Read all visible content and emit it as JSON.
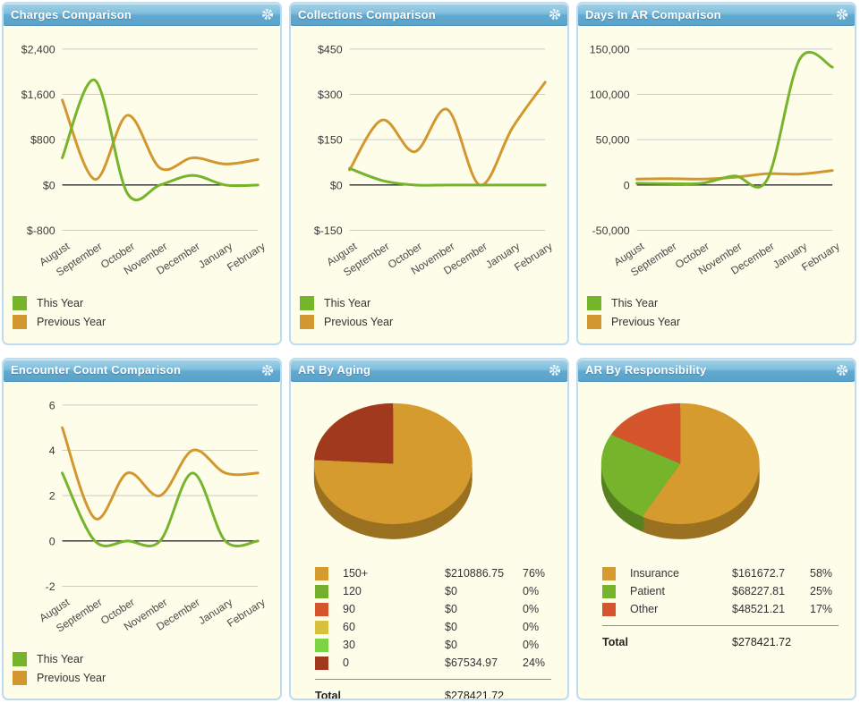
{
  "theme": {
    "panel_bg": "#fdfdea",
    "panel_border": "#bedcee",
    "header_blue_top": "#a3d2e8",
    "header_blue_bottom": "#5aa2c8",
    "green": "#76b42b",
    "orange": "#d2972e",
    "grid_color": "#cbcbcb",
    "zero_line_color": "#2a2a2a",
    "tick_text_color": "#3a3a3a"
  },
  "icons": {
    "gear": "settings-gear"
  },
  "months": [
    "August",
    "September",
    "October",
    "November",
    "December",
    "January",
    "February"
  ],
  "chart_data": [
    {
      "id": "charges",
      "type": "line",
      "title": "Charges Comparison",
      "categories": [
        "August",
        "September",
        "October",
        "November",
        "December",
        "January",
        "February"
      ],
      "ylim": [
        -800,
        2400
      ],
      "yticks": [
        {
          "label": "$2,400",
          "value": 2400
        },
        {
          "label": "$1,600",
          "value": 1600
        },
        {
          "label": "$800",
          "value": 800
        },
        {
          "label": "$0",
          "value": 0
        },
        {
          "label": "$-800",
          "value": -800
        }
      ],
      "legend_position": "bottom-left",
      "series": [
        {
          "name": "This Year",
          "color": "#76b42b",
          "values": [
            480,
            1850,
            -150,
            0,
            170,
            0,
            0
          ]
        },
        {
          "name": "Previous Year",
          "color": "#d2972e",
          "values": [
            1500,
            100,
            1230,
            300,
            480,
            370,
            450
          ]
        }
      ]
    },
    {
      "id": "collections",
      "type": "line",
      "title": "Collections Comparison",
      "categories": [
        "August",
        "September",
        "October",
        "November",
        "December",
        "January",
        "February"
      ],
      "ylim": [
        -150,
        450
      ],
      "yticks": [
        {
          "label": "$450",
          "value": 450
        },
        {
          "label": "$300",
          "value": 300
        },
        {
          "label": "$150",
          "value": 150
        },
        {
          "label": "$0",
          "value": 0
        },
        {
          "label": "$-150",
          "value": -150
        }
      ],
      "legend_position": "bottom-left",
      "series": [
        {
          "name": "This Year",
          "color": "#76b42b",
          "values": [
            55,
            15,
            0,
            0,
            0,
            0,
            0
          ]
        },
        {
          "name": "Previous Year",
          "color": "#d2972e",
          "values": [
            50,
            215,
            110,
            250,
            0,
            190,
            340
          ]
        }
      ]
    },
    {
      "id": "days_in_ar",
      "type": "line",
      "title": "Days In AR Comparison",
      "categories": [
        "August",
        "September",
        "October",
        "November",
        "December",
        "January",
        "February"
      ],
      "ylim": [
        -50000,
        150000
      ],
      "yticks": [
        {
          "label": "150,000",
          "value": 150000
        },
        {
          "label": "100,000",
          "value": 100000
        },
        {
          "label": "50,000",
          "value": 50000
        },
        {
          "label": "0",
          "value": 0
        },
        {
          "label": "-50,000",
          "value": -50000
        }
      ],
      "legend_position": "bottom-left",
      "series": [
        {
          "name": "This Year",
          "color": "#76b42b",
          "values": [
            2000,
            1500,
            2000,
            10000,
            6000,
            139000,
            130000
          ]
        },
        {
          "name": "Previous Year",
          "color": "#d2972e",
          "values": [
            6500,
            7000,
            6500,
            8500,
            12500,
            12000,
            16000
          ]
        }
      ]
    },
    {
      "id": "encounter_count",
      "type": "line",
      "title": "Encounter Count Comparison",
      "categories": [
        "August",
        "September",
        "October",
        "November",
        "December",
        "January",
        "February"
      ],
      "ylim": [
        -2,
        6
      ],
      "yticks": [
        {
          "label": "6",
          "value": 6
        },
        {
          "label": "4",
          "value": 4
        },
        {
          "label": "2",
          "value": 2
        },
        {
          "label": "0",
          "value": 0
        },
        {
          "label": "-2",
          "value": -2
        }
      ],
      "legend_position": "bottom-left",
      "series": [
        {
          "name": "This Year",
          "color": "#76b42b",
          "values": [
            3,
            0,
            0,
            0,
            3,
            0,
            0
          ]
        },
        {
          "name": "Previous Year",
          "color": "#d2972e",
          "values": [
            5,
            1,
            3,
            2,
            4,
            3,
            3
          ]
        }
      ]
    },
    {
      "id": "ar_by_aging",
      "type": "pie",
      "title": "AR By Aging",
      "rows": [
        {
          "label": "150+",
          "amount": "$210886.75",
          "pct": 76,
          "pct_label": "76%",
          "color": "#d69b2e"
        },
        {
          "label": "120",
          "amount": "$0",
          "pct": 0,
          "pct_label": "0%",
          "color": "#74b02c"
        },
        {
          "label": "90",
          "amount": "$0",
          "pct": 0,
          "pct_label": "0%",
          "color": "#d5562c"
        },
        {
          "label": "60",
          "amount": "$0",
          "pct": 0,
          "pct_label": "0%",
          "color": "#d9c13e"
        },
        {
          "label": "30",
          "amount": "$0",
          "pct": 0,
          "pct_label": "0%",
          "color": "#7cd344"
        },
        {
          "label": "0",
          "amount": "$67534.97",
          "pct": 24,
          "pct_label": "24%",
          "color": "#a13a1c"
        }
      ],
      "total_label": "Total",
      "total_amount": "$278421.72"
    },
    {
      "id": "ar_by_responsibility",
      "type": "pie",
      "title": "AR By Responsibility",
      "rows": [
        {
          "label": "Insurance",
          "amount": "$161672.7",
          "pct": 58,
          "pct_label": "58%",
          "color": "#d69b2e"
        },
        {
          "label": "Patient",
          "amount": "$68227.81",
          "pct": 25,
          "pct_label": "25%",
          "color": "#76b42b"
        },
        {
          "label": "Other",
          "amount": "$48521.21",
          "pct": 17,
          "pct_label": "17%",
          "color": "#d5562c"
        }
      ],
      "total_label": "Total",
      "total_amount": "$278421.72"
    }
  ]
}
